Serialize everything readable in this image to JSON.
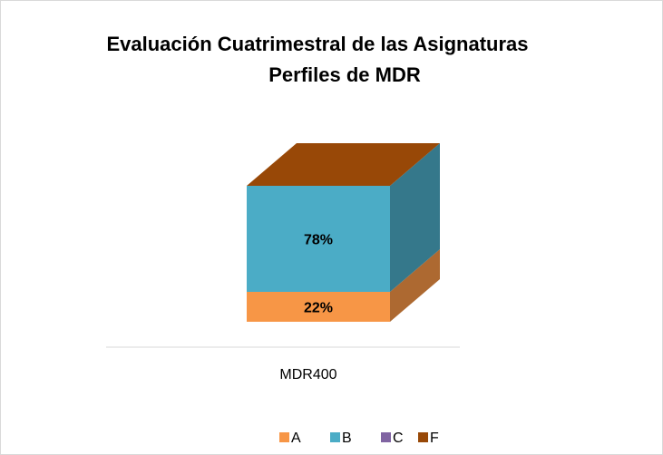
{
  "chart_data": {
    "type": "bar3d_stacked",
    "title": [
      "Evaluación Cuatrimestral de las Asignaturas",
      "Perfiles de MDR"
    ],
    "categories": [
      "MDR400"
    ],
    "series": [
      {
        "name": "A",
        "color": "#f79646",
        "values": [
          22
        ],
        "value_labels": [
          "22%"
        ]
      },
      {
        "name": "B",
        "color": "#4bacc6",
        "values": [
          78
        ],
        "value_labels": [
          "78%"
        ]
      },
      {
        "name": "C",
        "color": "#8064a2",
        "values": [
          0
        ]
      },
      {
        "name": "F",
        "color": "#984807",
        "values": [
          0
        ]
      }
    ],
    "legend": "bottom"
  }
}
